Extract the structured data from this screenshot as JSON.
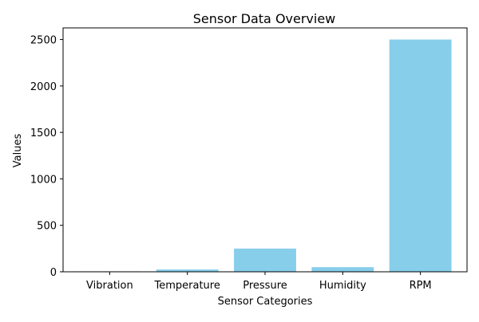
{
  "chart_data": {
    "type": "bar",
    "title": "Sensor Data Overview",
    "xlabel": "Sensor Categories",
    "ylabel": "Values",
    "categories": [
      "Vibration",
      "Temperature",
      "Pressure",
      "Humidity",
      "RPM"
    ],
    "values": [
      5,
      25,
      250,
      50,
      2500
    ],
    "ylim": [
      0,
      2625
    ],
    "yticks": [
      0,
      500,
      1000,
      1500,
      2000,
      2500
    ],
    "ytick_labels": [
      "0",
      "500",
      "1000",
      "1500",
      "2000",
      "2500"
    ],
    "grid": false,
    "legend": "none",
    "colors": {
      "bar": "#87ceeb",
      "axis": "#000000",
      "background": "#ffffff"
    }
  }
}
